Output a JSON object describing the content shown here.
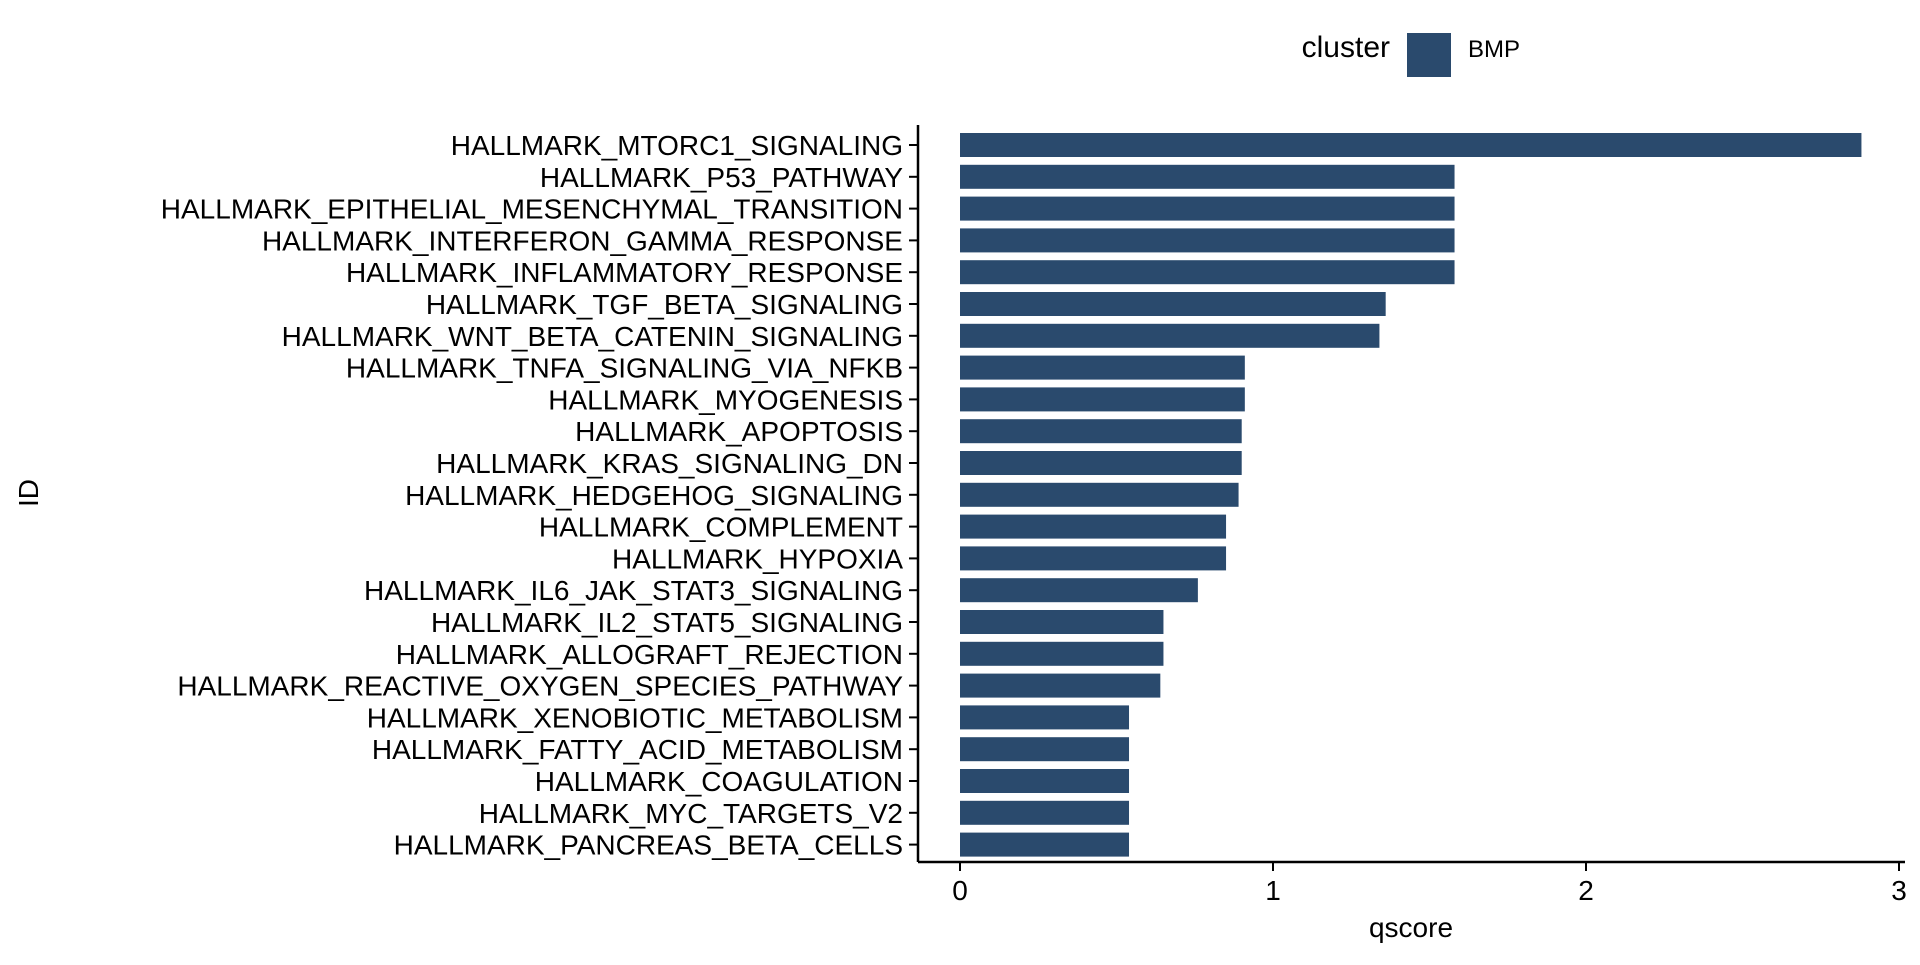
{
  "chart_data": {
    "type": "bar",
    "orientation": "horizontal",
    "xlabel": "qscore",
    "ylabel": "ID",
    "xlim": [
      -0.14,
      3.0
    ],
    "xticks": [
      0,
      1,
      2,
      3
    ],
    "grid": false,
    "legend": {
      "title": "cluster",
      "placement": "top",
      "entries": [
        {
          "label": "BMP",
          "color": "#2a4a6d"
        }
      ]
    },
    "series": [
      {
        "name": "BMP",
        "color": "#2a4a6d"
      }
    ],
    "categories": [
      "HALLMARK_MTORC1_SIGNALING",
      "HALLMARK_P53_PATHWAY",
      "HALLMARK_EPITHELIAL_MESENCHYMAL_TRANSITION",
      "HALLMARK_INTERFERON_GAMMA_RESPONSE",
      "HALLMARK_INFLAMMATORY_RESPONSE",
      "HALLMARK_TGF_BETA_SIGNALING",
      "HALLMARK_WNT_BETA_CATENIN_SIGNALING",
      "HALLMARK_TNFA_SIGNALING_VIA_NFKB",
      "HALLMARK_MYOGENESIS",
      "HALLMARK_APOPTOSIS",
      "HALLMARK_KRAS_SIGNALING_DN",
      "HALLMARK_HEDGEHOG_SIGNALING",
      "HALLMARK_COMPLEMENT",
      "HALLMARK_HYPOXIA",
      "HALLMARK_IL6_JAK_STAT3_SIGNALING",
      "HALLMARK_IL2_STAT5_SIGNALING",
      "HALLMARK_ALLOGRAFT_REJECTION",
      "HALLMARK_REACTIVE_OXYGEN_SPECIES_PATHWAY",
      "HALLMARK_XENOBIOTIC_METABOLISM",
      "HALLMARK_FATTY_ACID_METABOLISM",
      "HALLMARK_COAGULATION",
      "HALLMARK_MYC_TARGETS_V2",
      "HALLMARK_PANCREAS_BETA_CELLS"
    ],
    "values": [
      2.88,
      1.58,
      1.58,
      1.58,
      1.58,
      1.36,
      1.34,
      0.91,
      0.91,
      0.9,
      0.9,
      0.89,
      0.85,
      0.85,
      0.76,
      0.65,
      0.65,
      0.64,
      0.54,
      0.54,
      0.54,
      0.54,
      0.54
    ]
  }
}
